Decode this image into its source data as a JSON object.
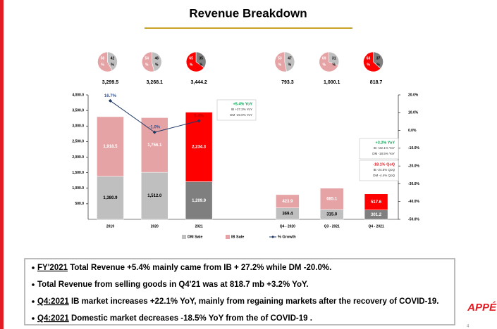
{
  "title": "Revenue Breakdown",
  "chart_data": {
    "type": "bar",
    "categories": [
      "2019",
      "2020",
      "2021",
      null,
      "Q4 - 2020",
      "Q3 - 2021",
      "Q4 - 2021"
    ],
    "series": [
      {
        "name": "DM Sale",
        "color": "#bfbfbf",
        "colors": [
          "#bfbfbf",
          "#bfbfbf",
          "#7f7f7f",
          null,
          "#bfbfbf",
          "#bfbfbf",
          "#7f7f7f"
        ],
        "values": [
          1380.9,
          1512.0,
          1209.9,
          null,
          369.4,
          315.0,
          301.2
        ],
        "value_labels": [
          "1,380.9",
          "1,512.0",
          "1,209.9",
          null,
          "369.4",
          "315.0",
          "301.2"
        ]
      },
      {
        "name": "IB Sale",
        "color": "#e6a3a5",
        "colors": [
          "#e6a3a5",
          "#e6a3a5",
          "#ff0000",
          null,
          "#e6a3a5",
          "#e6a3a5",
          "#ff0000"
        ],
        "values": [
          1918.5,
          1756.1,
          2234.3,
          null,
          423.9,
          685.1,
          517.6
        ],
        "value_labels": [
          "1,918.5",
          "1,756.1",
          "2,234.3",
          null,
          "423.9",
          "685.1",
          "517.6"
        ]
      },
      {
        "name": "% Growth",
        "type": "line",
        "axis": "y2",
        "color": "#1f3864",
        "values": [
          16.7,
          -1.0,
          5.4,
          null,
          null,
          null,
          null
        ],
        "value_labels": [
          "16.7%",
          "-1.0%",
          "5.4%",
          null,
          null,
          null,
          null
        ]
      }
    ],
    "total_labels": [
      "3,299.5",
      "3,268.1",
      "3,444.2",
      null,
      "793.3",
      "1,000.1",
      "818.7"
    ],
    "pie_unit": "%",
    "pies": [
      {
        "values": [
          58,
          42
        ],
        "colors": [
          "#e6a3a5",
          "#bfbfbf"
        ]
      },
      {
        "values": [
          54,
          46
        ],
        "colors": [
          "#e6a3a5",
          "#bfbfbf"
        ]
      },
      {
        "values": [
          65,
          35
        ],
        "colors": [
          "#ff0000",
          "#7f7f7f"
        ]
      },
      null,
      {
        "values": [
          53,
          47
        ],
        "colors": [
          "#e6a3a5",
          "#bfbfbf"
        ]
      },
      {
        "values": [
          69,
          31
        ],
        "colors": [
          "#e6a3a5",
          "#bfbfbf"
        ]
      },
      {
        "values": [
          63,
          37
        ],
        "colors": [
          "#ff0000",
          "#7f7f7f"
        ]
      }
    ],
    "ylim": [
      0,
      4000
    ],
    "yticks": [
      {
        "value": 500,
        "label": "500.0"
      },
      {
        "value": 1000,
        "label": "1,000.0"
      },
      {
        "value": 1500,
        "label": "1,500.0"
      },
      {
        "value": 2000,
        "label": "2,000.0"
      },
      {
        "value": 2500,
        "label": "2,500.0"
      },
      {
        "value": 3000,
        "label": "3,000.0"
      },
      {
        "value": 3500,
        "label": "3,500.0"
      },
      {
        "value": 4000,
        "label": "4,000.0"
      }
    ],
    "y2lim": [
      -50,
      20
    ],
    "y2ticks": [
      {
        "value": -50,
        "label": "-50.0%"
      },
      {
        "value": -40,
        "label": "-40.0%"
      },
      {
        "value": -30,
        "label": "-30.0%"
      },
      {
        "value": -20,
        "label": "-20.0%"
      },
      {
        "value": -10,
        "label": "-10.0%"
      },
      {
        "value": 0,
        "label": "0.0%"
      },
      {
        "value": 10,
        "label": "10.0%"
      },
      {
        "value": 20,
        "label": "20.0%"
      }
    ],
    "annotations": [
      [
        "+5.4% YoY",
        "IB +27.2% YoY",
        "DM -20.0% YoY"
      ],
      [
        "+3.2% YoY",
        "IB +22.1% YoY",
        "DM -18.5% YoY"
      ],
      [
        "-18.1% QoQ",
        "IB -24.5% QoQ",
        "DM -4.4% QoQ"
      ]
    ]
  },
  "bullets": [
    [
      {
        "text": "FY'2021",
        "underline": true
      },
      {
        "text": " Total Revenue +5.4% mainly came from IB + 27.2% while DM -20.0%."
      }
    ],
    [
      {
        "text": "Total Revenue from selling goods in Q4'21 was at 818.7 mb +3.2% YoY."
      }
    ],
    [
      {
        "text": "Q4:2021",
        "underline": true
      },
      {
        "text": " IB market  increases +22.1% YoY, mainly from regaining markets after the recovery of COVID-19."
      }
    ],
    [
      {
        "text": "Q4:2021",
        "underline": true
      },
      {
        "text": " Domestic market decreases -18.5% YoY from the of COVID-19 ."
      }
    ]
  ],
  "logo": "APPÉ",
  "page_number": "4"
}
